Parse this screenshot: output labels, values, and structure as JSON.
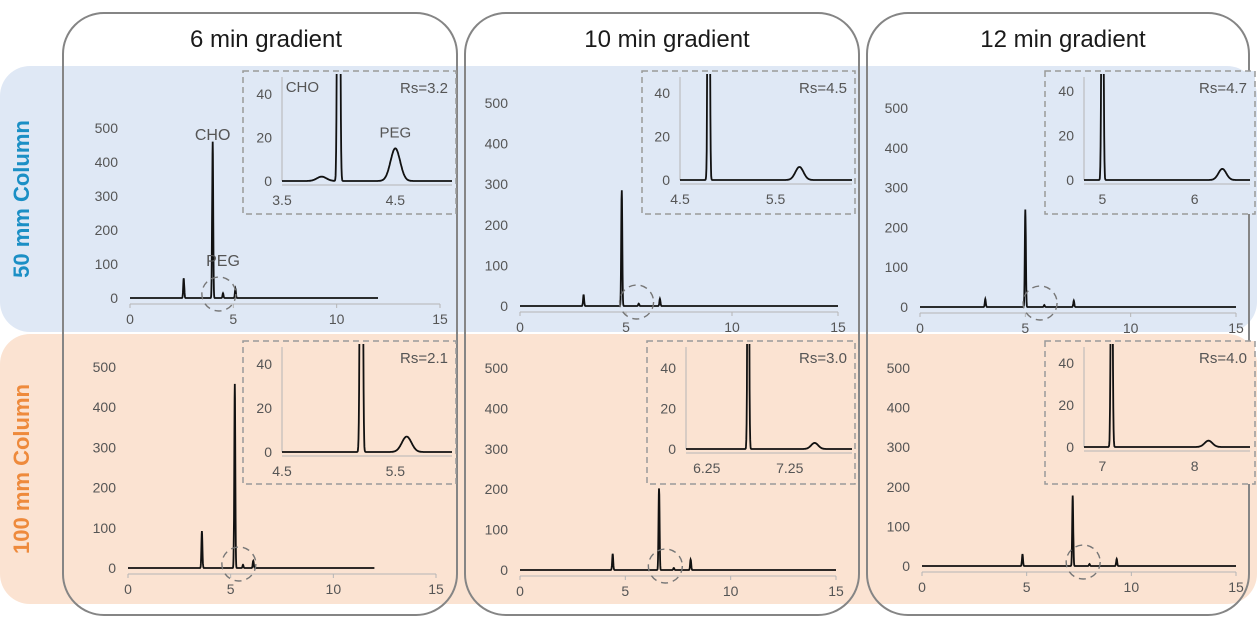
{
  "row_labels": [
    "50 mm Column",
    "100 mm Column"
  ],
  "column_titles": [
    "6 min gradient",
    "10 min gradient",
    "12 min gradient"
  ],
  "colors": {
    "top_band": "#dfe8f5",
    "bottom_band": "#fbe3d2",
    "top_label": "#1b8fc5",
    "bottom_label": "#ee8a3c",
    "trace": "#111111",
    "frame": "#858585",
    "dashed": "#9a9a9a"
  },
  "chart_data": [
    {
      "type": "line",
      "row": 0,
      "col": 0,
      "xlim": [
        0,
        15
      ],
      "ylim": [
        0,
        500
      ],
      "xticks": [
        "0",
        "5",
        "10",
        "15"
      ],
      "yticks": [
        "0",
        "100",
        "200",
        "300",
        "400",
        "500"
      ],
      "run_end": 12,
      "peaks": [
        {
          "x": 2.6,
          "y": 58
        },
        {
          "x": 4.0,
          "y": 460
        },
        {
          "x": 4.5,
          "y": 14
        },
        {
          "x": 5.1,
          "y": 28
        }
      ],
      "annotations": [
        {
          "text": "CHO",
          "x": 4.0,
          "y": 470
        },
        {
          "text": "PEG",
          "x": 4.5,
          "y": 100
        }
      ],
      "circle_x": 4.3,
      "inset": {
        "xlim": [
          3.5,
          5.0
        ],
        "ylim": [
          0,
          45
        ],
        "xticks": [
          "3.5",
          "4.5"
        ],
        "yticks": [
          "0",
          "20",
          "40"
        ],
        "rs": "Rs=3.2",
        "peaks": [
          {
            "x": 4.0,
            "y": 460
          },
          {
            "x": 3.85,
            "y": 2
          },
          {
            "x": 4.5,
            "y": 15
          }
        ],
        "labels": [
          {
            "text": "CHO",
            "x": 3.68,
            "y": 41
          },
          {
            "text": "PEG",
            "x": 4.5,
            "y": 20
          }
        ]
      }
    },
    {
      "type": "line",
      "row": 0,
      "col": 1,
      "xlim": [
        0,
        15
      ],
      "ylim": [
        0,
        500
      ],
      "xticks": [
        "0",
        "5",
        "10",
        "15"
      ],
      "yticks": [
        "0",
        "100",
        "200",
        "300",
        "400",
        "500"
      ],
      "run_end": 15,
      "peaks": [
        {
          "x": 3.0,
          "y": 28
        },
        {
          "x": 4.8,
          "y": 285
        },
        {
          "x": 5.6,
          "y": 6
        },
        {
          "x": 6.6,
          "y": 18
        }
      ],
      "circle_x": 5.5,
      "inset": {
        "xlim": [
          4.5,
          6.3
        ],
        "ylim": [
          0,
          45
        ],
        "xticks": [
          "4.5",
          "5.5"
        ],
        "yticks": [
          "0",
          "20",
          "40"
        ],
        "rs": "Rs=4.5",
        "peaks": [
          {
            "x": 4.8,
            "y": 285
          },
          {
            "x": 5.75,
            "y": 6
          }
        ]
      }
    },
    {
      "type": "line",
      "row": 0,
      "col": 2,
      "xlim": [
        0,
        15
      ],
      "ylim": [
        0,
        500
      ],
      "xticks": [
        "0",
        "5",
        "10",
        "15"
      ],
      "yticks": [
        "0",
        "100",
        "200",
        "300",
        "400",
        "500"
      ],
      "run_end": 15,
      "peaks": [
        {
          "x": 3.1,
          "y": 20
        },
        {
          "x": 5.0,
          "y": 245
        },
        {
          "x": 5.9,
          "y": 5
        },
        {
          "x": 7.3,
          "y": 16
        }
      ],
      "circle_x": 5.7,
      "inset": {
        "xlim": [
          4.8,
          6.6
        ],
        "ylim": [
          0,
          45
        ],
        "xticks": [
          "5",
          "6"
        ],
        "yticks": [
          "0",
          "20",
          "40"
        ],
        "rs": "Rs=4.7",
        "peaks": [
          {
            "x": 5.0,
            "y": 245
          },
          {
            "x": 6.3,
            "y": 5
          }
        ]
      }
    },
    {
      "type": "line",
      "row": 1,
      "col": 0,
      "xlim": [
        0,
        15
      ],
      "ylim": [
        0,
        500
      ],
      "xticks": [
        "0",
        "5",
        "10",
        "15"
      ],
      "yticks": [
        "0",
        "100",
        "200",
        "300",
        "400",
        "500"
      ],
      "run_end": 12,
      "peaks": [
        {
          "x": 3.6,
          "y": 92
        },
        {
          "x": 5.2,
          "y": 458
        },
        {
          "x": 5.6,
          "y": 8
        },
        {
          "x": 6.1,
          "y": 18
        }
      ],
      "circle_x": 5.4,
      "inset": {
        "xlim": [
          4.5,
          6.0
        ],
        "ylim": [
          0,
          45
        ],
        "xticks": [
          "4.5",
          "5.5"
        ],
        "yticks": [
          "0",
          "20",
          "40"
        ],
        "rs": "Rs=2.1",
        "peaks": [
          {
            "x": 5.2,
            "y": 458
          },
          {
            "x": 5.6,
            "y": 7
          }
        ]
      }
    },
    {
      "type": "line",
      "row": 1,
      "col": 1,
      "xlim": [
        0,
        15
      ],
      "ylim": [
        0,
        500
      ],
      "xticks": [
        "0",
        "5",
        "10",
        "15"
      ],
      "yticks": [
        "0",
        "100",
        "200",
        "300",
        "400",
        "500"
      ],
      "run_end": 15,
      "peaks": [
        {
          "x": 4.4,
          "y": 40
        },
        {
          "x": 6.6,
          "y": 202
        },
        {
          "x": 7.3,
          "y": 5
        },
        {
          "x": 8.1,
          "y": 26
        }
      ],
      "circle_x": 6.9,
      "inset": {
        "xlim": [
          6.0,
          8.0
        ],
        "ylim": [
          0,
          45
        ],
        "xticks": [
          "6.25",
          "7.25"
        ],
        "yticks": [
          "0",
          "20",
          "40"
        ],
        "rs": "Rs=3.0",
        "peaks": [
          {
            "x": 6.75,
            "y": 202
          },
          {
            "x": 7.55,
            "y": 3
          }
        ]
      }
    },
    {
      "type": "line",
      "row": 1,
      "col": 2,
      "xlim": [
        0,
        15
      ],
      "ylim": [
        0,
        500
      ],
      "xticks": [
        "0",
        "5",
        "10",
        "15"
      ],
      "yticks": [
        "0",
        "100",
        "200",
        "300",
        "400",
        "500"
      ],
      "run_end": 15,
      "peaks": [
        {
          "x": 4.8,
          "y": 30
        },
        {
          "x": 7.2,
          "y": 178
        },
        {
          "x": 8.0,
          "y": 5
        },
        {
          "x": 9.3,
          "y": 18
        }
      ],
      "circle_x": 7.7,
      "inset": {
        "xlim": [
          6.8,
          8.6
        ],
        "ylim": [
          0,
          45
        ],
        "xticks": [
          "7",
          "8"
        ],
        "yticks": [
          "0",
          "20",
          "40"
        ],
        "rs": "Rs=4.0",
        "peaks": [
          {
            "x": 7.1,
            "y": 178
          },
          {
            "x": 8.15,
            "y": 3
          }
        ]
      }
    }
  ]
}
